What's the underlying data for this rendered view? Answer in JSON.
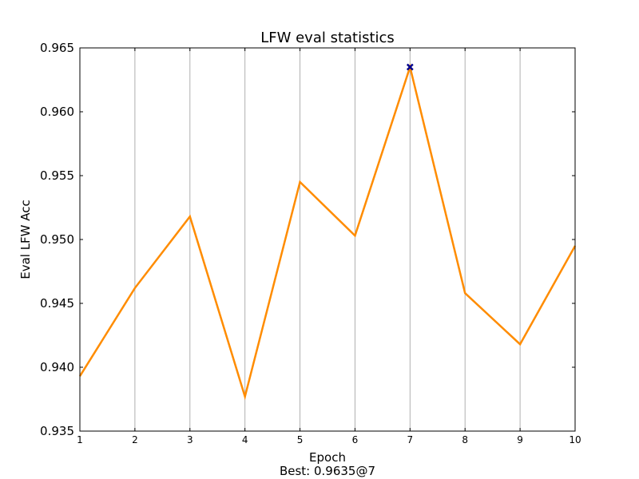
{
  "chart_data": {
    "type": "line",
    "title": "LFW eval statistics",
    "xlabel": "Epoch",
    "ylabel": "Eval LFW Acc",
    "footer": "Best: 0.9635@7",
    "x": [
      1,
      2,
      3,
      4,
      5,
      6,
      7,
      8,
      9,
      10
    ],
    "xlim": [
      1,
      10
    ],
    "ylim": [
      0.935,
      0.965
    ],
    "xticks": [
      "1",
      "2",
      "3",
      "4",
      "5",
      "6",
      "7",
      "8",
      "9",
      "10"
    ],
    "yticks": [
      "0.935",
      "0.940",
      "0.945",
      "0.950",
      "0.955",
      "0.960",
      "0.965"
    ],
    "ytick_values": [
      0.935,
      0.94,
      0.945,
      0.95,
      0.955,
      0.96,
      0.965
    ],
    "grid": "vertical",
    "series": [
      {
        "values": [
          0.9393,
          0.9462,
          0.9518,
          0.9377,
          0.9545,
          0.9503,
          0.9635,
          0.9458,
          0.9418,
          0.9495
        ],
        "color": "#ff8c00"
      }
    ],
    "best_marker": {
      "x": 7,
      "y": 0.9635,
      "color": "#00008b",
      "shape": "x"
    }
  }
}
